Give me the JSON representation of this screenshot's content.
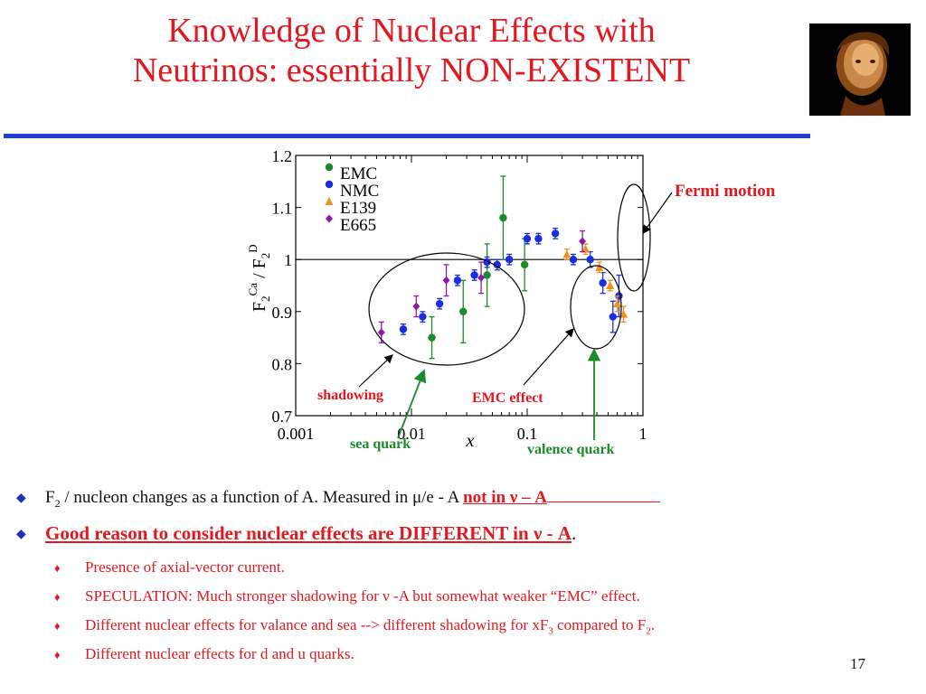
{
  "slide": {
    "title_line1": "Knowledge of  Nuclear Effects with",
    "title_line2": "Neutrinos: essentially NON-EXISTENT",
    "page_number": "17",
    "colors": {
      "title": "#e3171f",
      "rule": "#1f3fd8",
      "bullet_marker": "#1f2fb8",
      "sub_text": "#e3171f"
    }
  },
  "chart_data": {
    "type": "scatter",
    "ylabel": "F2Ca / F2D",
    "xlabel": "x",
    "xscale": "log",
    "xlim": [
      0.001,
      1
    ],
    "ylim": [
      0.7,
      1.2
    ],
    "x_ticks": [
      "0.001",
      "0.01",
      "0.1",
      "1"
    ],
    "y_ticks": [
      "0.7",
      "0.8",
      "0.9",
      "1",
      "1.1",
      "1.2"
    ],
    "reference_line": 1.0,
    "legend": {
      "placement": "top-left",
      "entries": [
        "EMC",
        "NMC",
        "E139",
        "E665"
      ]
    },
    "series": [
      {
        "name": "EMC",
        "color": "#1a8a2a",
        "marker": "circle",
        "points": [
          {
            "x": 0.015,
            "y": 0.85,
            "err": 0.04
          },
          {
            "x": 0.028,
            "y": 0.9,
            "err": 0.06
          },
          {
            "x": 0.045,
            "y": 0.97,
            "err": 0.06
          },
          {
            "x": 0.062,
            "y": 1.08,
            "err": 0.08
          },
          {
            "x": 0.095,
            "y": 0.99,
            "err": 0.05
          }
        ]
      },
      {
        "name": "NMC",
        "color": "#1a2ee0",
        "marker": "circle",
        "points": [
          {
            "x": 0.0085,
            "y": 0.866,
            "err": 0.01
          },
          {
            "x": 0.0125,
            "y": 0.89,
            "err": 0.01
          },
          {
            "x": 0.0175,
            "y": 0.915,
            "err": 0.01
          },
          {
            "x": 0.025,
            "y": 0.96,
            "err": 0.01
          },
          {
            "x": 0.035,
            "y": 0.97,
            "err": 0.01
          },
          {
            "x": 0.045,
            "y": 0.995,
            "err": 0.01
          },
          {
            "x": 0.055,
            "y": 0.99,
            "err": 0.01
          },
          {
            "x": 0.07,
            "y": 1.0,
            "err": 0.01
          },
          {
            "x": 0.1,
            "y": 1.04,
            "err": 0.01
          },
          {
            "x": 0.125,
            "y": 1.04,
            "err": 0.01
          },
          {
            "x": 0.175,
            "y": 1.05,
            "err": 0.01
          },
          {
            "x": 0.25,
            "y": 1.0,
            "err": 0.01
          },
          {
            "x": 0.35,
            "y": 1.0,
            "err": 0.015
          },
          {
            "x": 0.45,
            "y": 0.955,
            "err": 0.02
          },
          {
            "x": 0.55,
            "y": 0.89,
            "err": 0.03
          },
          {
            "x": 0.62,
            "y": 0.93,
            "err": 0.04
          }
        ]
      },
      {
        "name": "E139",
        "color": "#f09020",
        "marker": "triangle",
        "points": [
          {
            "x": 0.22,
            "y": 1.01,
            "err": 0.01
          },
          {
            "x": 0.32,
            "y": 1.02,
            "err": 0.01
          },
          {
            "x": 0.42,
            "y": 0.985,
            "err": 0.01
          },
          {
            "x": 0.52,
            "y": 0.95,
            "err": 0.01
          },
          {
            "x": 0.6,
            "y": 0.915,
            "err": 0.015
          },
          {
            "x": 0.68,
            "y": 0.895,
            "err": 0.015
          }
        ]
      },
      {
        "name": "E665",
        "color": "#8a1aa8",
        "marker": "diamond",
        "points": [
          {
            "x": 0.0055,
            "y": 0.86,
            "err": 0.02
          },
          {
            "x": 0.011,
            "y": 0.91,
            "err": 0.02
          },
          {
            "x": 0.02,
            "y": 0.96,
            "err": 0.03
          },
          {
            "x": 0.04,
            "y": 0.965,
            "err": 0.03
          },
          {
            "x": 0.3,
            "y": 1.035,
            "err": 0.02
          }
        ]
      }
    ],
    "annotations": {
      "fermi": "Fermi motion",
      "shadowing": "shadowing",
      "emc": "EMC effect",
      "sea": "sea quark",
      "valence": "valence quark"
    }
  },
  "bullets": {
    "b1_sub": "2",
    "b1_text": " / nucleon changes as a function of A. Measured in ",
    "b1_mu": "μ",
    "b1_text2": "/e - A ",
    "b1_red": "not in ν – A",
    "b1_F": "F",
    "b2_text": "Good reason to consider nuclear effects are DIFFERENT in ν - A",
    "b2_period": ".",
    "s1": "Presence of axial-vector current.",
    "s2": "SPECULATION: Much stronger shadowing for ν -A but somewhat weaker “EMC” effect.",
    "s3_a": "Different nuclear effects for valance and sea --> different shadowing for xF",
    "s3_sub1": "3",
    "s3_b": " compared to F",
    "s3_sub2": "2",
    "s3_c": ".",
    "s4": "Different nuclear effects for d and u quarks."
  }
}
